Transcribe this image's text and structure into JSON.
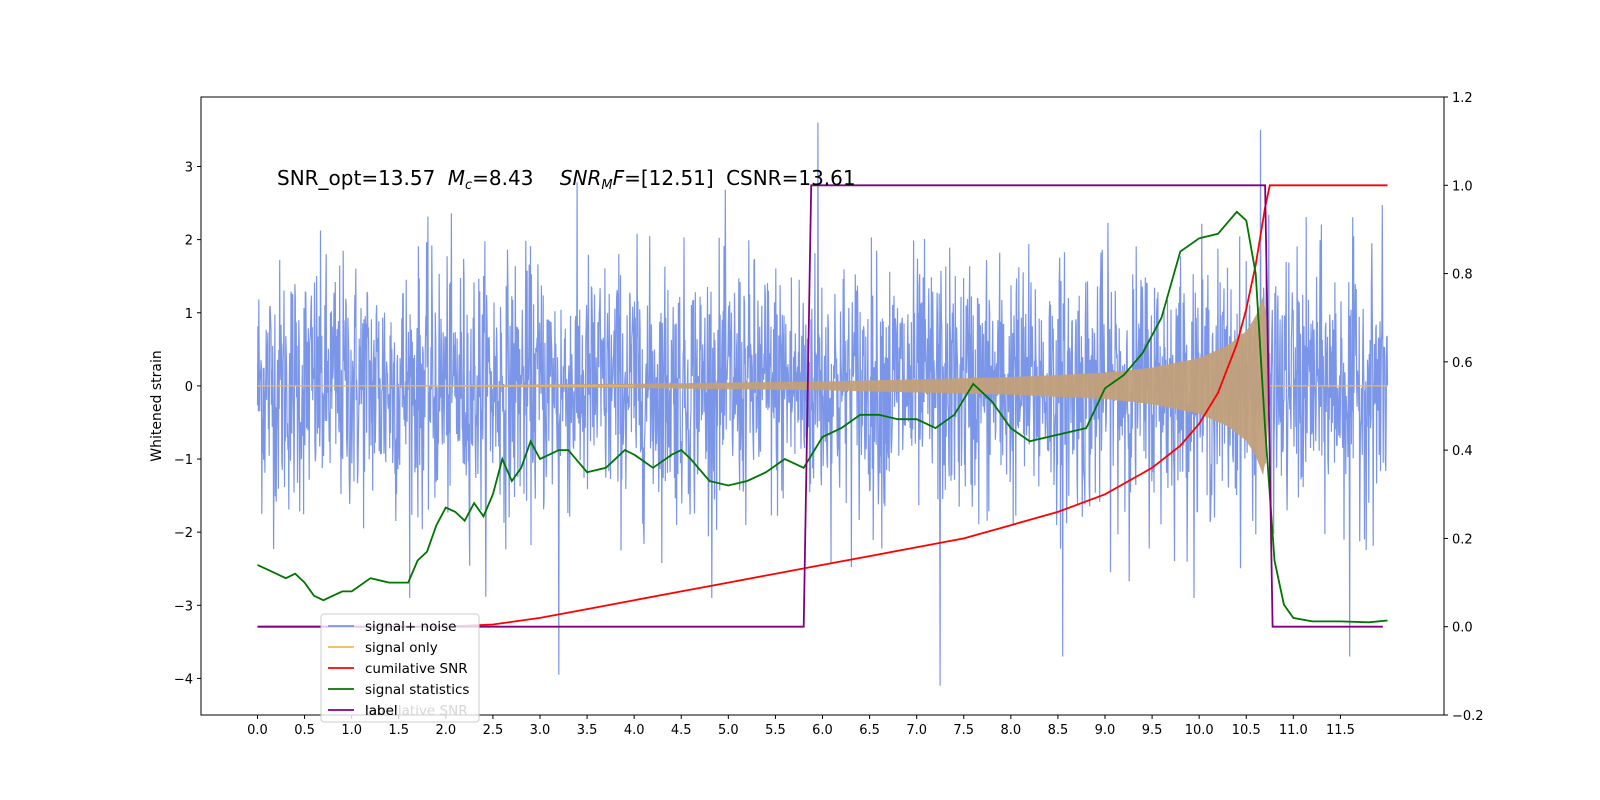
{
  "chart_data": {
    "type": "line",
    "title": "",
    "annotation": {
      "snr_opt": "SNR_opt=13.57",
      "mc_symbol": "M",
      "mc_sub": "c",
      "mc_value": "=8.43",
      "snrmf_symbol": "SNR",
      "snrmf_sub": "M",
      "snrmf_tail": "F",
      "snrmf_value": "=[12.51]",
      "csnr": "CSNR=13.61"
    },
    "xlabel": "",
    "ylabel": "Whitened strain",
    "ylabel_right": "",
    "xlim": [
      -0.6,
      12.6
    ],
    "ylim": [
      -4.5,
      3.95
    ],
    "ylim_right": [
      -0.2,
      1.2
    ],
    "xticks": [
      "0.0",
      "0.5",
      "1.0",
      "1.5",
      "2.0",
      "2.5",
      "3.0",
      "3.5",
      "4.0",
      "4.5",
      "5.0",
      "5.5",
      "6.0",
      "6.5",
      "7.0",
      "7.5",
      "8.0",
      "8.5",
      "9.0",
      "9.5",
      "10.0",
      "10.5",
      "11.0",
      "11.5"
    ],
    "yticks": [
      "−4",
      "−3",
      "−2",
      "−1",
      "0",
      "1",
      "2",
      "3"
    ],
    "yticks_right": [
      "−0.2",
      "0.0",
      "0.2",
      "0.4",
      "0.6",
      "0.8",
      "1.0",
      "1.2"
    ],
    "grid": false,
    "legend_position": "lower-left",
    "colors": {
      "noise": "#7b96e8",
      "signal": "#f5b84a",
      "signal_fill": "#c2a07a",
      "cumulative": "#ff0000",
      "statistics": "#007500",
      "label": "#800080"
    },
    "series": [
      {
        "name": "signal+ noise",
        "axis": "left",
        "kind": "noise",
        "x_range": [
          0.0,
          12.0
        ],
        "amplitude_envelope": [
          -2.3,
          2.4
        ],
        "extreme_spikes": [
          [
            5.95,
            3.6
          ],
          [
            7.25,
            -4.1
          ],
          [
            3.2,
            -3.95
          ],
          [
            10.65,
            3.5
          ],
          [
            11.6,
            -3.7
          ],
          [
            8.55,
            -3.7
          ]
        ]
      },
      {
        "name": "signal only",
        "axis": "left",
        "kind": "chirp",
        "x_range": [
          0.0,
          10.75
        ],
        "amplitude_x": [
          0.0,
          2.0,
          4.0,
          6.0,
          7.0,
          8.0,
          9.0,
          9.5,
          10.0,
          10.3,
          10.5,
          10.6,
          10.7,
          10.75
        ],
        "amplitude_y": [
          0.0,
          0.01,
          0.03,
          0.06,
          0.09,
          0.12,
          0.18,
          0.25,
          0.38,
          0.55,
          0.75,
          0.95,
          1.3,
          0.05
        ]
      },
      {
        "name": "cumilative SNR",
        "axis": "right",
        "x": [
          0.0,
          0.5,
          1.0,
          1.5,
          2.0,
          2.5,
          3.0,
          3.5,
          4.0,
          4.5,
          5.0,
          5.5,
          6.0,
          6.5,
          7.0,
          7.5,
          8.0,
          8.5,
          9.0,
          9.5,
          9.8,
          10.0,
          10.2,
          10.4,
          10.5,
          10.6,
          10.7,
          10.75,
          11.0,
          11.5,
          12.0
        ],
        "y": [
          0.0,
          0.0,
          0.0,
          0.0,
          0.0,
          0.005,
          0.02,
          0.04,
          0.06,
          0.08,
          0.1,
          0.12,
          0.14,
          0.16,
          0.18,
          0.2,
          0.23,
          0.26,
          0.3,
          0.36,
          0.41,
          0.46,
          0.53,
          0.64,
          0.72,
          0.82,
          0.95,
          1.0,
          1.0,
          1.0,
          1.0
        ]
      },
      {
        "name": "signal statistics",
        "axis": "right",
        "x": [
          0.0,
          0.1,
          0.2,
          0.3,
          0.4,
          0.5,
          0.6,
          0.7,
          0.8,
          0.9,
          1.0,
          1.2,
          1.4,
          1.6,
          1.7,
          1.8,
          1.9,
          2.0,
          2.1,
          2.2,
          2.3,
          2.4,
          2.5,
          2.6,
          2.7,
          2.8,
          2.9,
          3.0,
          3.1,
          3.2,
          3.3,
          3.5,
          3.7,
          3.9,
          4.0,
          4.2,
          4.4,
          4.5,
          4.6,
          4.8,
          5.0,
          5.2,
          5.4,
          5.6,
          5.8,
          6.0,
          6.2,
          6.4,
          6.6,
          6.8,
          7.0,
          7.2,
          7.4,
          7.6,
          7.8,
          8.0,
          8.2,
          8.4,
          8.6,
          8.8,
          9.0,
          9.2,
          9.4,
          9.6,
          9.8,
          10.0,
          10.2,
          10.4,
          10.5,
          10.6,
          10.7,
          10.8,
          10.9,
          11.0,
          11.2,
          11.5,
          11.8,
          12.0
        ],
        "y": [
          0.14,
          0.13,
          0.12,
          0.11,
          0.12,
          0.1,
          0.07,
          0.06,
          0.07,
          0.08,
          0.08,
          0.11,
          0.1,
          0.1,
          0.15,
          0.17,
          0.23,
          0.27,
          0.26,
          0.24,
          0.28,
          0.25,
          0.3,
          0.38,
          0.33,
          0.36,
          0.42,
          0.38,
          0.39,
          0.4,
          0.4,
          0.35,
          0.36,
          0.4,
          0.39,
          0.36,
          0.39,
          0.4,
          0.38,
          0.33,
          0.32,
          0.33,
          0.35,
          0.38,
          0.36,
          0.43,
          0.45,
          0.48,
          0.48,
          0.47,
          0.47,
          0.45,
          0.48,
          0.55,
          0.51,
          0.45,
          0.42,
          0.43,
          0.44,
          0.45,
          0.54,
          0.57,
          0.62,
          0.7,
          0.85,
          0.88,
          0.89,
          0.94,
          0.92,
          0.8,
          0.45,
          0.15,
          0.05,
          0.02,
          0.012,
          0.012,
          0.01,
          0.014
        ]
      },
      {
        "name": "label",
        "axis": "right",
        "x": [
          0.0,
          5.8,
          5.88,
          10.7,
          10.78,
          11.95
        ],
        "y": [
          0.0,
          0.0,
          1.0,
          1.0,
          0.0,
          0.0
        ]
      }
    ],
    "legend_entries": [
      "signal+ noise",
      "signal only",
      "cumilative SNR",
      "signal statistics",
      "label"
    ],
    "legend_hidden_text": "cumilative SNR"
  }
}
